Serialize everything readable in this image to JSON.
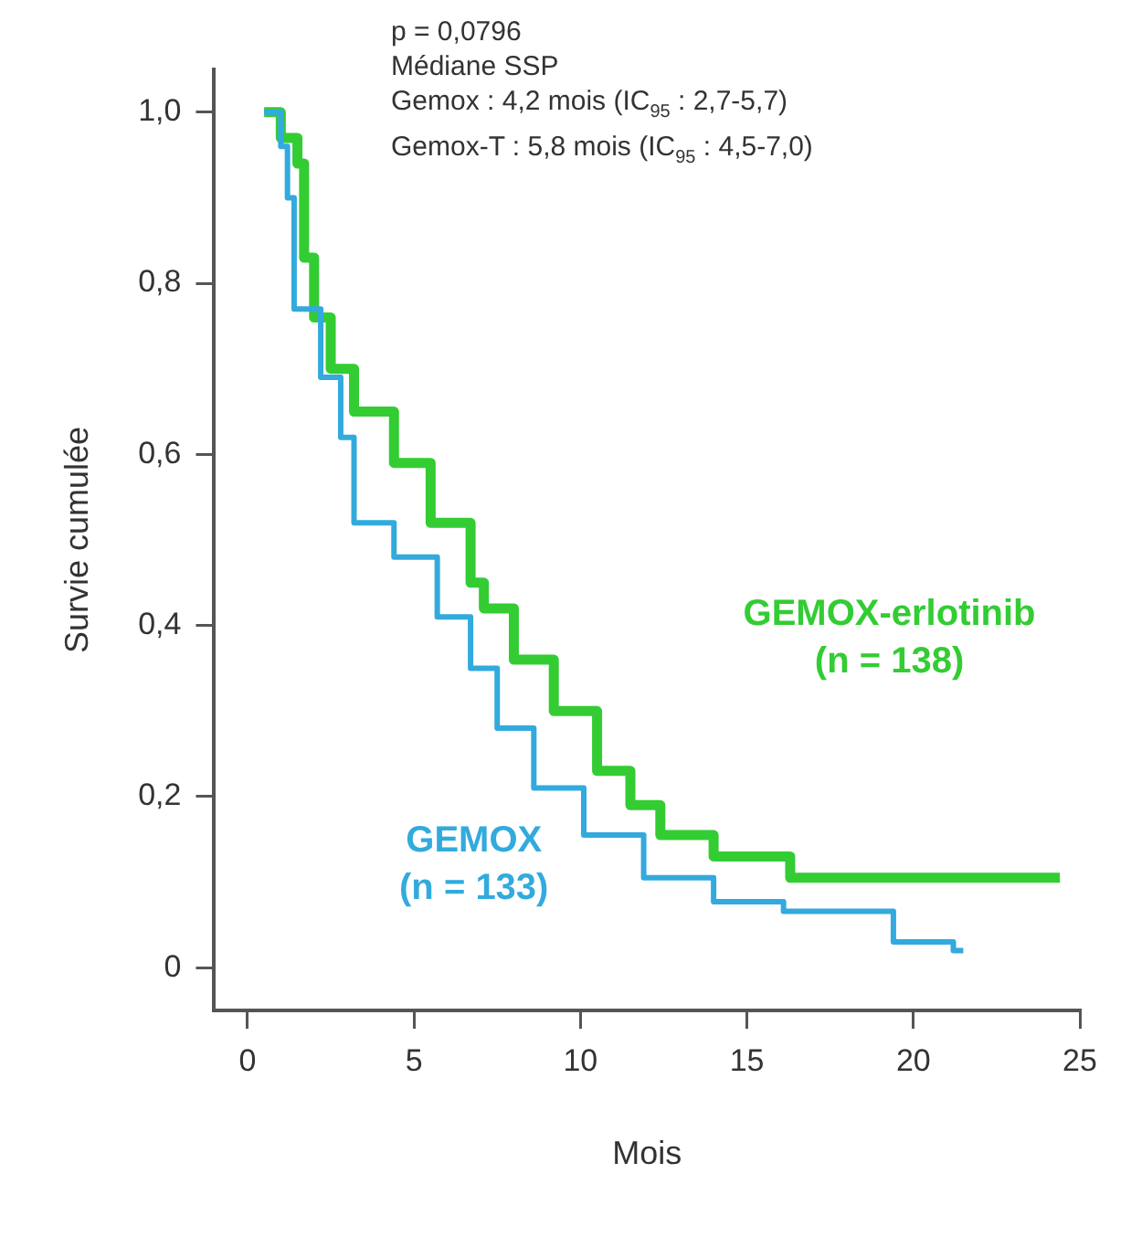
{
  "chart_data": {
    "type": "step",
    "xlabel": "Mois",
    "ylabel": "Survie cumulée",
    "annotations": [
      "p = 0,0796",
      "Médiane SSP",
      "Gemox : 4,2 mois (IC$_{95}$ : 2,7-5,7)",
      "Gemox-T : 5,8 mois (IC$_{95}$ : 4,5-7,0)"
    ],
    "series": [
      {
        "name": "GEMOX-erlotinib\n(n = 138)",
        "color": "#33cc33",
        "x": [
          0.5,
          1.0,
          1.5,
          1.7,
          2.0,
          2.5,
          3.2,
          4.4,
          5.5,
          6.7,
          7.1,
          8.0,
          9.2,
          10.5,
          11.5,
          12.4,
          14.0,
          16.3,
          24.4
        ],
        "values": [
          1.0,
          0.97,
          0.94,
          0.83,
          0.76,
          0.7,
          0.65,
          0.59,
          0.52,
          0.45,
          0.42,
          0.36,
          0.3,
          0.23,
          0.19,
          0.155,
          0.13,
          0.105,
          0.105
        ]
      },
      {
        "name": "GEMOX\n(n = 133)",
        "color": "#33aadd",
        "x": [
          0.5,
          1.0,
          1.2,
          1.4,
          2.2,
          2.8,
          3.2,
          4.4,
          5.7,
          6.7,
          7.5,
          8.6,
          10.1,
          11.9,
          14.0,
          16.1,
          19.4,
          21.2,
          21.5
        ],
        "values": [
          1.0,
          0.96,
          0.9,
          0.77,
          0.69,
          0.62,
          0.52,
          0.48,
          0.41,
          0.35,
          0.28,
          0.21,
          0.155,
          0.105,
          0.077,
          0.066,
          0.03,
          0.02,
          0.02
        ]
      }
    ],
    "xlim": [
      -1,
      25
    ],
    "xticks": [
      0,
      5,
      10,
      15,
      20,
      25
    ],
    "ylim": [
      -0.05,
      1.05
    ],
    "yticks": [
      {
        "value": 0,
        "label": "0"
      },
      {
        "value": 0.2,
        "label": "0,2"
      },
      {
        "value": 0.4,
        "label": "0,4"
      },
      {
        "value": 0.6,
        "label": "0,6"
      },
      {
        "value": 0.8,
        "label": "0,8"
      },
      {
        "value": 1.0,
        "label": "1,0"
      }
    ],
    "grid": false,
    "legend": false,
    "line_style": "solid",
    "marker": "none"
  }
}
